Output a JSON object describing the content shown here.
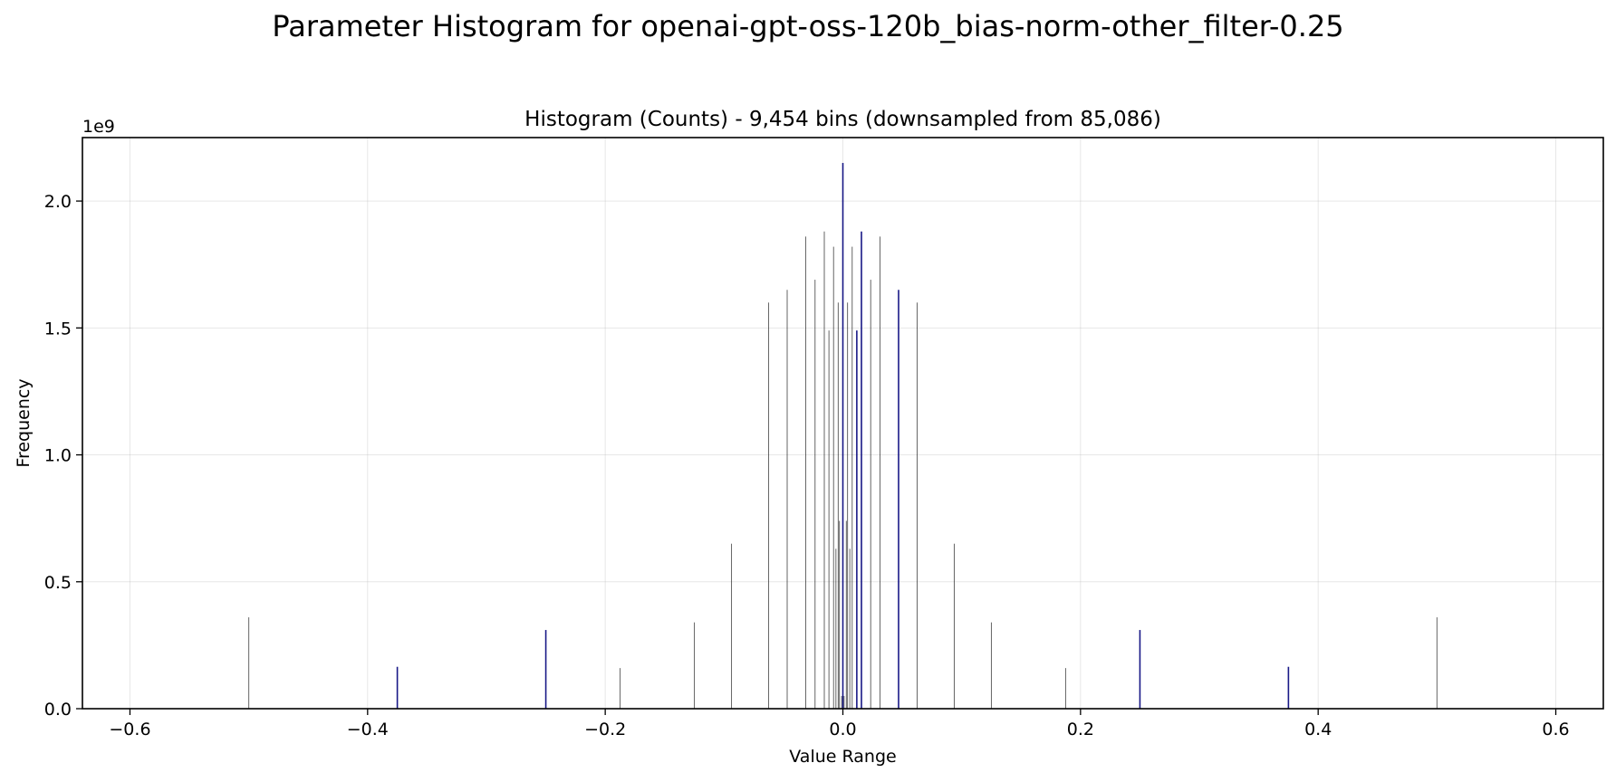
{
  "figure": {
    "suptitle": "Parameter Histogram for openai-gpt-oss-120b_bias-norm-other_filter-0.25"
  },
  "chart_data": {
    "type": "bar",
    "title": "Histogram (Counts) - 9,454 bins (downsampled from 85,086)",
    "xlabel": "Value Range",
    "ylabel": "Frequency",
    "y_offset_label": "1e9",
    "xlim": [
      -0.64,
      0.64
    ],
    "ylim": [
      0,
      2.25
    ],
    "y_scale_factor": 1000000000,
    "x_ticks": [
      -0.6,
      -0.4,
      -0.2,
      0.0,
      0.2,
      0.4,
      0.6
    ],
    "x_tick_labels": [
      "−0.6",
      "−0.4",
      "−0.2",
      "0.0",
      "0.2",
      "0.4",
      "0.6"
    ],
    "y_ticks": [
      0.0,
      0.5,
      1.0,
      1.5,
      2.0
    ],
    "y_tick_labels": [
      "0.0",
      "0.5",
      "1.0",
      "1.5",
      "2.0"
    ],
    "grid": true,
    "bar_color": "#000000",
    "bar_edge_color": "#00007a",
    "bars": [
      {
        "x": -0.5,
        "y": 0.36
      },
      {
        "x": -0.375,
        "y": 0.165
      },
      {
        "x": -0.25,
        "y": 0.31
      },
      {
        "x": -0.1875,
        "y": 0.16
      },
      {
        "x": -0.125,
        "y": 0.34
      },
      {
        "x": -0.09375,
        "y": 0.65
      },
      {
        "x": -0.0625,
        "y": 1.6
      },
      {
        "x": -0.046875,
        "y": 1.65
      },
      {
        "x": -0.03125,
        "y": 1.86
      },
      {
        "x": -0.0234375,
        "y": 1.69
      },
      {
        "x": -0.015625,
        "y": 1.88
      },
      {
        "x": -0.01171875,
        "y": 1.49
      },
      {
        "x": -0.0078125,
        "y": 1.82
      },
      {
        "x": -0.005859375,
        "y": 0.63
      },
      {
        "x": -0.00390625,
        "y": 1.6
      },
      {
        "x": -0.0029296875,
        "y": 0.74
      },
      {
        "x": -0.001,
        "y": 0.05
      },
      {
        "x": 0.0,
        "y": 2.15
      },
      {
        "x": 0.001,
        "y": 0.05
      },
      {
        "x": 0.0029296875,
        "y": 0.74
      },
      {
        "x": 0.00390625,
        "y": 1.6
      },
      {
        "x": 0.005859375,
        "y": 0.63
      },
      {
        "x": 0.0078125,
        "y": 1.82
      },
      {
        "x": 0.01171875,
        "y": 1.49
      },
      {
        "x": 0.015625,
        "y": 1.88
      },
      {
        "x": 0.0234375,
        "y": 1.69
      },
      {
        "x": 0.03125,
        "y": 1.86
      },
      {
        "x": 0.046875,
        "y": 1.65
      },
      {
        "x": 0.0625,
        "y": 1.6
      },
      {
        "x": 0.09375,
        "y": 0.65
      },
      {
        "x": 0.125,
        "y": 0.34
      },
      {
        "x": 0.1875,
        "y": 0.16
      },
      {
        "x": 0.25,
        "y": 0.31
      },
      {
        "x": 0.375,
        "y": 0.165
      },
      {
        "x": 0.5,
        "y": 0.36
      }
    ]
  }
}
